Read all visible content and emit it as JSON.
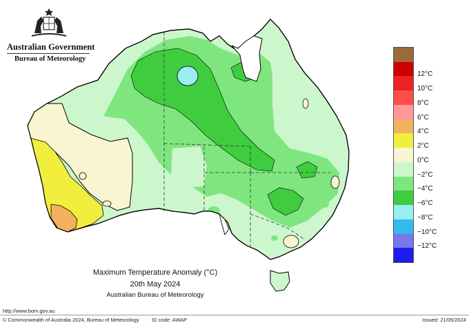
{
  "header": {
    "agency": "Australian Government",
    "bureau": "Bureau of Meteorology"
  },
  "map": {
    "title": "Maximum Temperature Anomaly (°C)",
    "date": "20th May 2024",
    "source": "Australian Bureau of Meteorology",
    "region": "Australia"
  },
  "legend": {
    "items": [
      {
        "label": "",
        "color": "#9b6a3a"
      },
      {
        "label": "12°C",
        "color": "#cc0000"
      },
      {
        "label": "10°C",
        "color": "#ee2222"
      },
      {
        "label": "8°C",
        "color": "#ff4c4c"
      },
      {
        "label": "6°C",
        "color": "#ff9999"
      },
      {
        "label": "4°C",
        "color": "#f2b25e"
      },
      {
        "label": "2°C",
        "color": "#f2ee3d"
      },
      {
        "label": "0°C",
        "color": "#f9f5d0"
      },
      {
        "label": "−2°C",
        "color": "#ccf7cc"
      },
      {
        "label": "−4°C",
        "color": "#7fe67f"
      },
      {
        "label": "−6°C",
        "color": "#3fcc3f"
      },
      {
        "label": "−8°C",
        "color": "#99eef0"
      },
      {
        "label": "−10°C",
        "color": "#33bbee"
      },
      {
        "label": "−12°C",
        "color": "#7777ee"
      },
      {
        "label": "",
        "color": "#1c1cf0"
      }
    ]
  },
  "footer": {
    "url": "http://www.bom.gov.au",
    "copyright": "© Commonwealth of Australia 2024, Bureau of Meteorology",
    "id_code": "ID code: AWAP",
    "issued": "Issued: 21/05/2024"
  }
}
